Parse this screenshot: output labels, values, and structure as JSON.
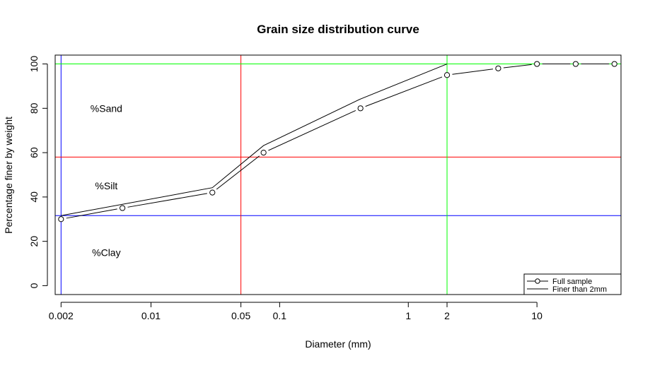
{
  "chart_data": {
    "type": "line",
    "title": "Grain size distribution curve",
    "xlabel": "Diameter (mm)",
    "ylabel": "Percentage finer by weight",
    "x_scale": "log",
    "xlim": [
      0.0018,
      45
    ],
    "ylim": [
      -4,
      104
    ],
    "x_ticks": [
      {
        "value": 0.002,
        "label": "0.002"
      },
      {
        "value": 0.01,
        "label": "0.01"
      },
      {
        "value": 0.05,
        "label": "0.05"
      },
      {
        "value": 0.1,
        "label": "0.1"
      },
      {
        "value": 1,
        "label": "1"
      },
      {
        "value": 2,
        "label": "2"
      },
      {
        "value": 10,
        "label": "10"
      }
    ],
    "y_ticks": [
      0,
      20,
      40,
      60,
      80,
      100
    ],
    "grid": false,
    "series": [
      {
        "name": "Full sample",
        "style": "points-and-lines",
        "color": "#000000",
        "x": [
          0.002,
          0.006,
          0.03,
          0.075,
          0.425,
          2,
          5,
          10,
          20,
          40
        ],
        "y": [
          30,
          35,
          42,
          60,
          80,
          95,
          98,
          100,
          100,
          100
        ]
      },
      {
        "name": "Finer than 2mm",
        "style": "line",
        "color": "#000000",
        "x": [
          0.002,
          0.03,
          0.075,
          0.425,
          2
        ],
        "y": [
          31.6,
          44.2,
          63.2,
          84.2,
          100
        ]
      }
    ],
    "reference_lines": [
      {
        "orientation": "vertical",
        "x": 0.002,
        "color": "#0000ff"
      },
      {
        "orientation": "horizontal",
        "y": 31.6,
        "color": "#0000ff"
      },
      {
        "orientation": "vertical",
        "x": 0.05,
        "color": "#ff0000"
      },
      {
        "orientation": "horizontal",
        "y": 58,
        "color": "#ff0000"
      },
      {
        "orientation": "vertical",
        "x": 2,
        "color": "#00ff00"
      },
      {
        "orientation": "horizontal",
        "y": 100,
        "color": "#00ff00"
      }
    ],
    "annotations": [
      {
        "text": "%Sand",
        "x": 0.0045,
        "y": 80
      },
      {
        "text": "%Silt",
        "x": 0.0045,
        "y": 45
      },
      {
        "text": "%Clay",
        "x": 0.0045,
        "y": 15
      }
    ],
    "legend": {
      "position": "bottom-right",
      "entries": [
        {
          "label": "Full sample",
          "symbol": "line-with-circle"
        },
        {
          "label": "Finer than 2mm",
          "symbol": "line"
        }
      ]
    }
  }
}
